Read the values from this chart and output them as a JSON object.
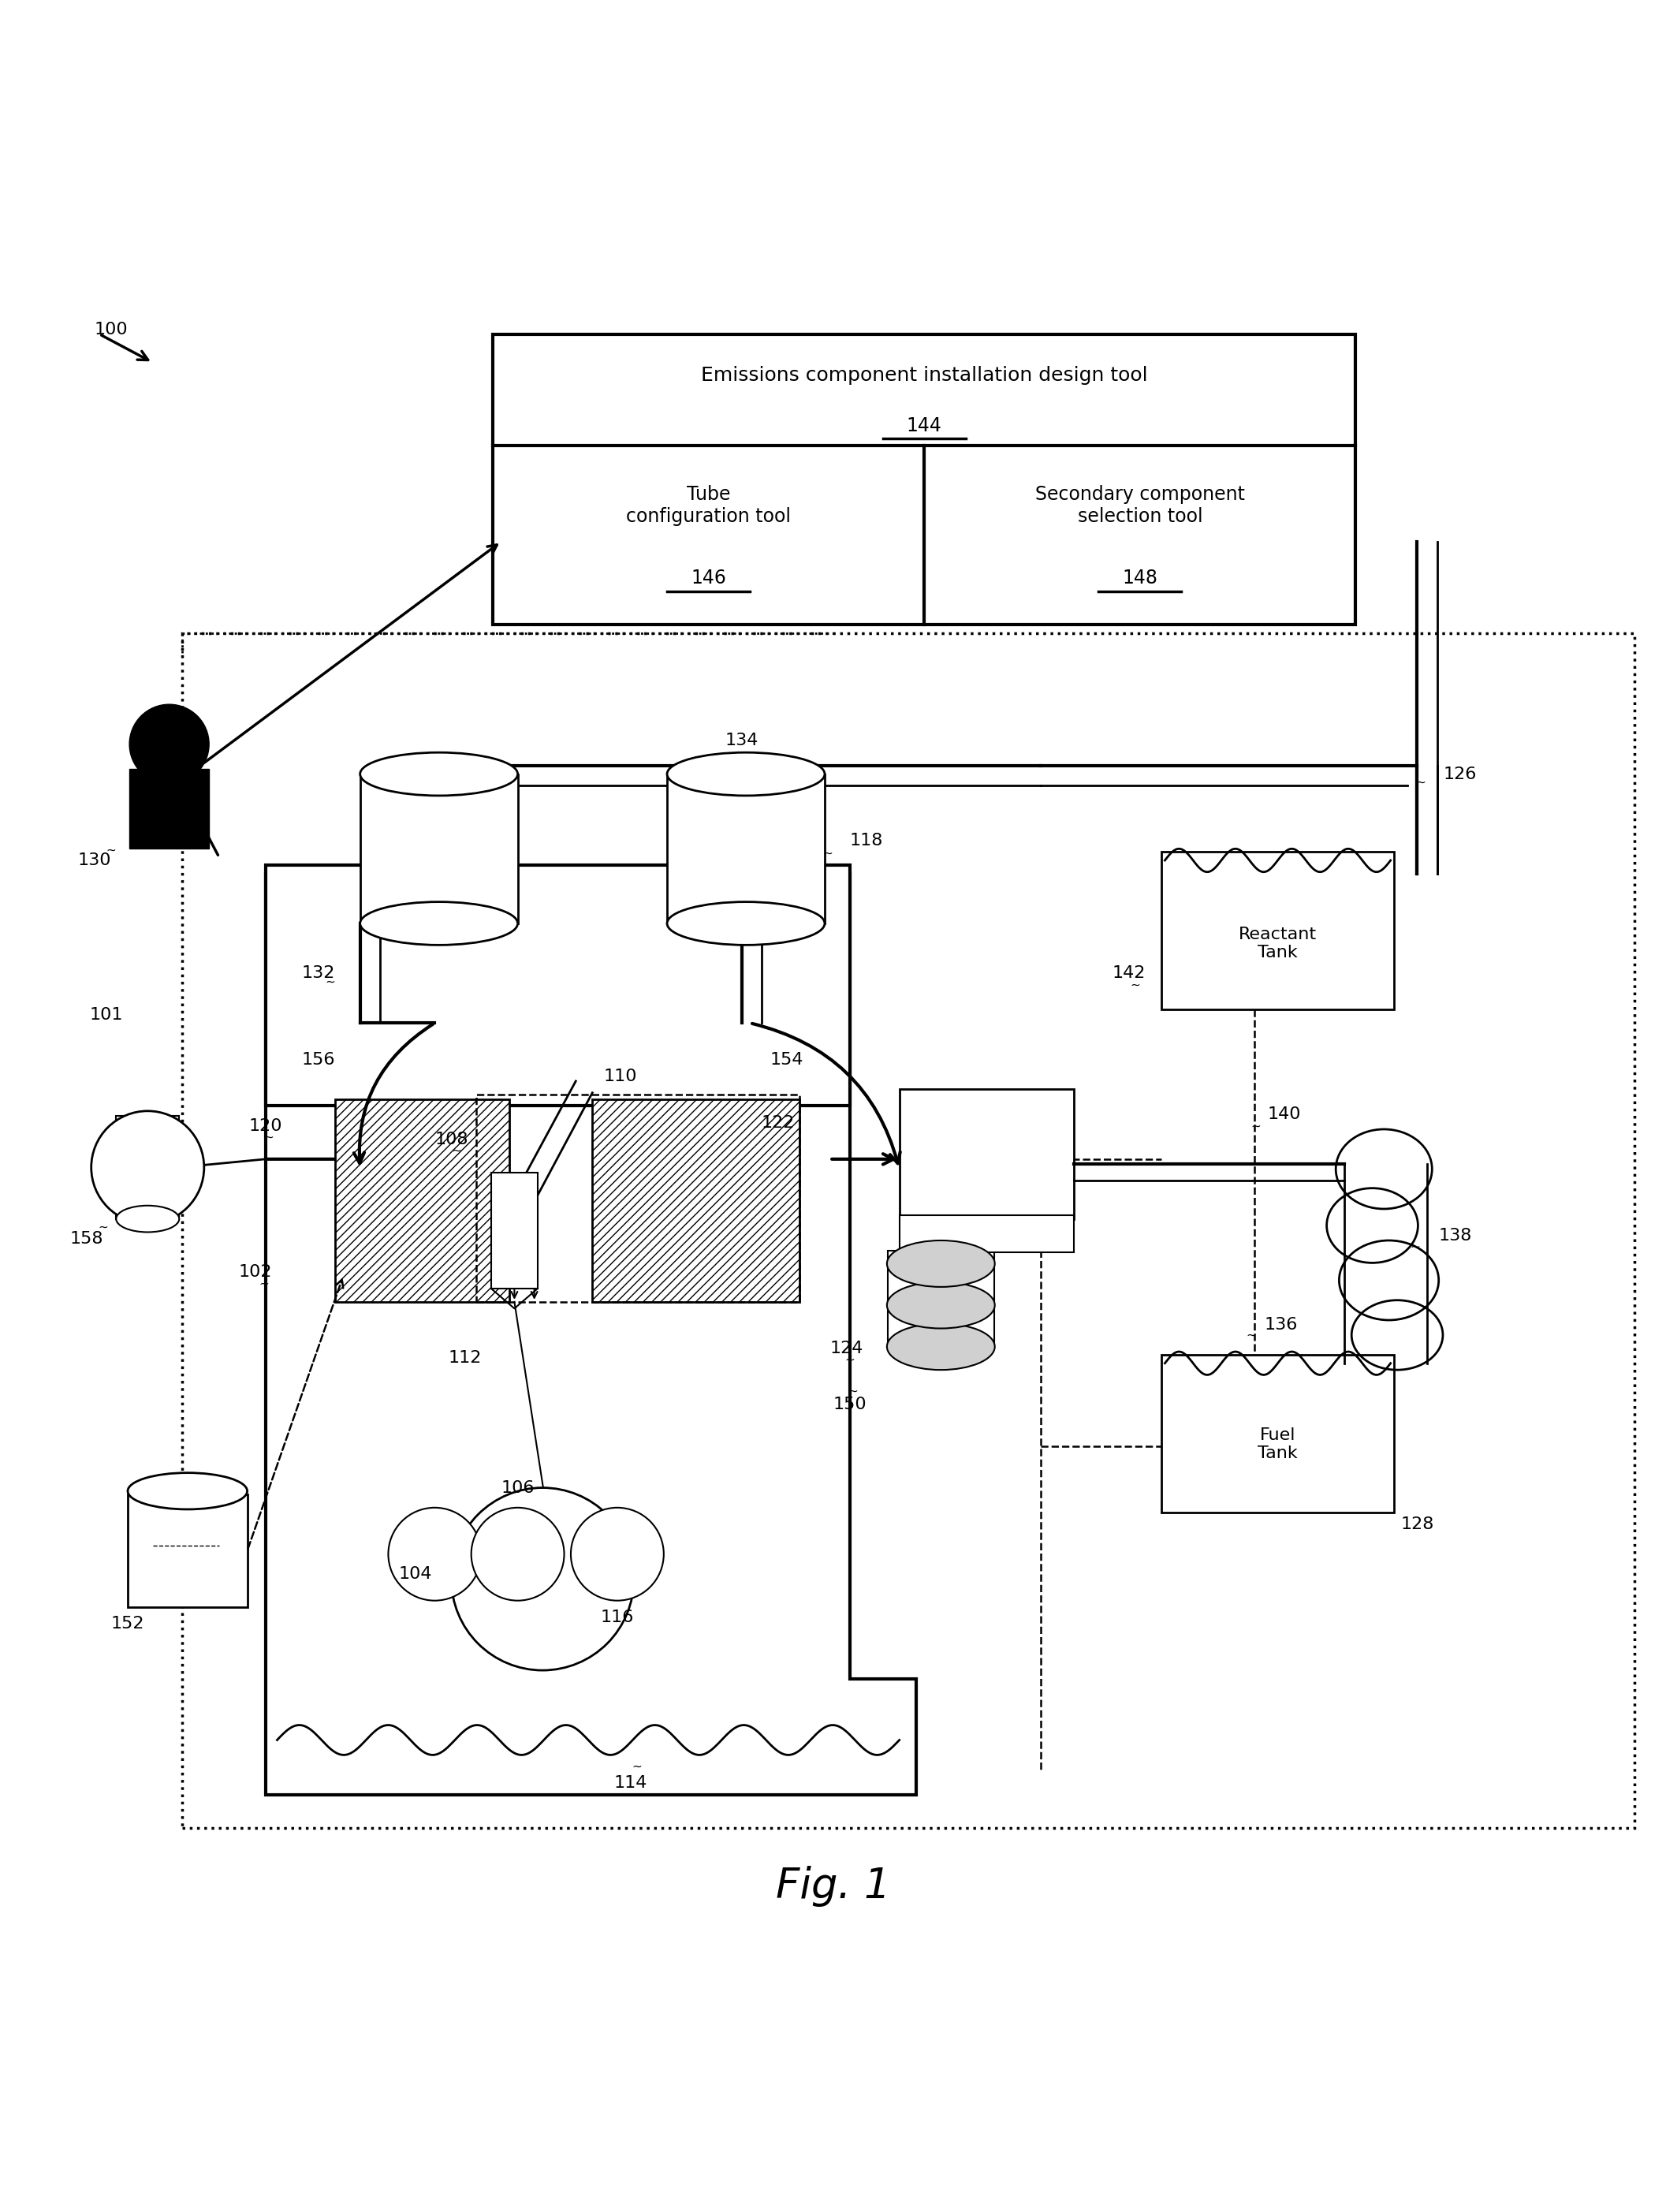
{
  "title": "Fig. 1",
  "bg_color": "#ffffff",
  "reactant_tank_label": "Reactant\nTank",
  "fuel_tank_label": "Fuel\nTank",
  "design_tool_title": "Emissions component installation design tool",
  "design_tool_ref": "144",
  "tube_tool_label": "Tube\nconfiguration tool",
  "tube_tool_ref": "146",
  "sec_tool_label": "Secondary component\nselection tool",
  "sec_tool_ref": "148",
  "label_100": "100",
  "label_101": "101",
  "label_102": "102",
  "label_104": "104",
  "label_106": "106",
  "label_108": "108",
  "label_110": "110",
  "label_112": "112",
  "label_114": "114",
  "label_116": "116",
  "label_118": "118",
  "label_120": "120",
  "label_122": "122",
  "label_124": "124",
  "label_126": "126",
  "label_128": "128",
  "label_130": "130",
  "label_132": "132",
  "label_134": "134",
  "label_136": "136",
  "label_138": "138",
  "label_140": "140",
  "label_142": "142",
  "label_150": "150",
  "label_152": "152",
  "label_154": "154",
  "label_156": "156",
  "label_158": "158"
}
